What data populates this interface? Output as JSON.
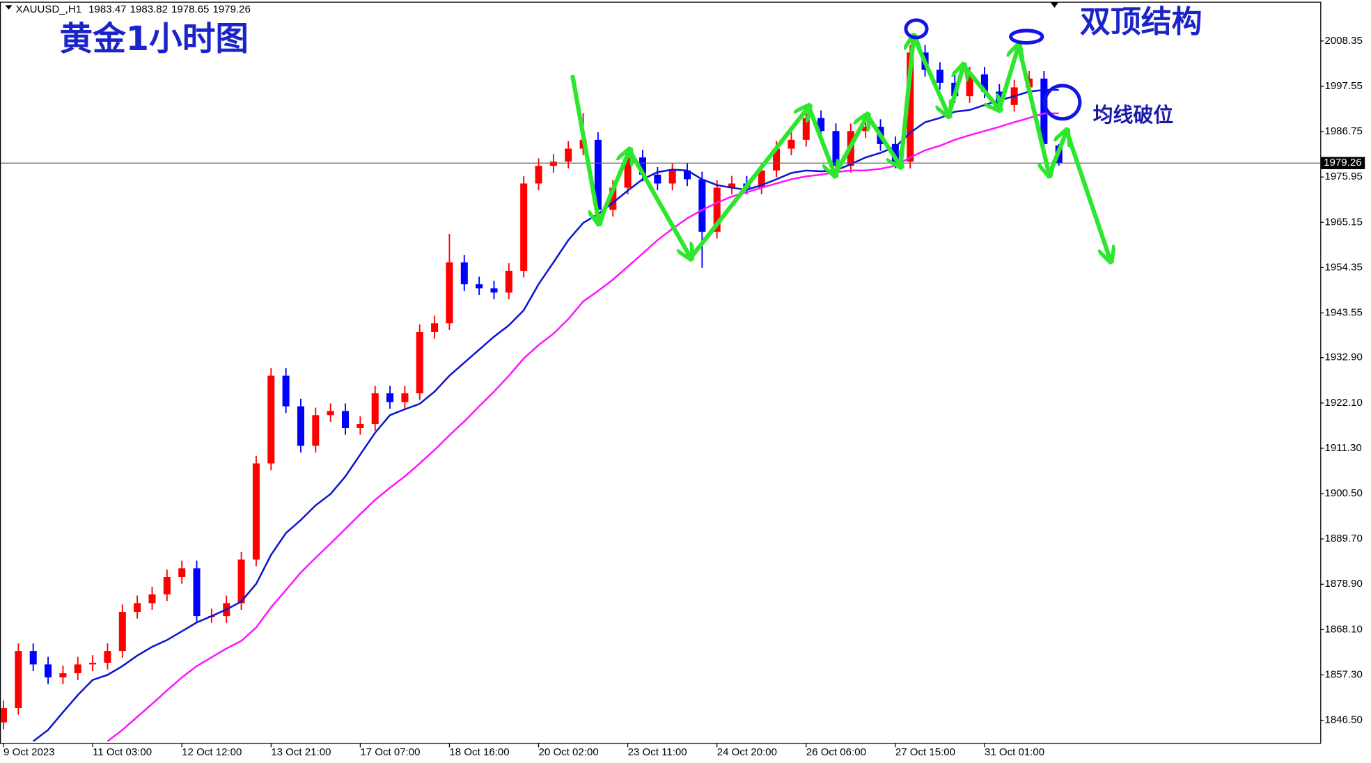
{
  "chart_data": {
    "type": "candlestick",
    "symbol": "XAUUSD_,H1",
    "title": "黄金1小时图",
    "annotations": [
      "双顶结构",
      "均线破位"
    ],
    "up_color": "#ff0000",
    "down_color": "#0000ff",
    "categories": [
      "9 Oct 2023",
      null,
      null,
      null,
      null,
      null,
      "11 Oct 03:00",
      null,
      null,
      null,
      null,
      null,
      "12 Oct 12:00",
      null,
      null,
      null,
      null,
      null,
      "13 Oct 21:00",
      null,
      null,
      null,
      null,
      null,
      "17 Oct 07:00",
      null,
      null,
      null,
      null,
      null,
      "18 Oct 16:00",
      null,
      null,
      null,
      null,
      null,
      "20 Oct 02:00",
      null,
      null,
      null,
      null,
      null,
      "23 Oct 11:00",
      null,
      null,
      null,
      null,
      null,
      "24 Oct 20:00",
      null,
      null,
      null,
      null,
      null,
      "26 Oct 06:00",
      null,
      null,
      null,
      null,
      null,
      "27 Oct 15:00",
      null,
      null,
      null,
      null,
      null,
      "31 Oct 01:00",
      null,
      null,
      null,
      null,
      null
    ],
    "open": [
      1846.0,
      1849.4,
      1863.0,
      1859.8,
      1856.7,
      1857.7,
      1859.8,
      1860.2,
      1863.0,
      1872.3,
      1874.4,
      1876.5,
      1880.6,
      1882.7,
      1871.3,
      1871.3,
      1874.4,
      1884.8,
      1907.7,
      1928.6,
      1921.3,
      1911.9,
      1919.2,
      1920.2,
      1916.1,
      1917.1,
      1924.4,
      1922.3,
      1924.4,
      1939.0,
      1941.1,
      1955.6,
      1950.4,
      1949.4,
      1948.4,
      1953.6,
      1974.4,
      1978.6,
      1979.6,
      1982.7,
      1984.8,
      1968.1,
      1973.4,
      1980.6,
      1976.5,
      1974.4,
      1977.5,
      1975.4,
      1962.9,
      1973.4,
      1974.4,
      1973.4,
      1977.5,
      1982.7,
      1984.8,
      1990.0,
      1986.9,
      1978.6,
      1986.9,
      1987.9,
      1983.8,
      1979.6,
      2005.6,
      2001.5,
      1998.4,
      1995.2,
      2000.4,
      1996.3,
      1993.1,
      1997.3,
      1999.4,
      1983.47
    ],
    "high": [
      1851.2,
      1864.8,
      1864.8,
      1861.6,
      1859.5,
      1861.6,
      1862.0,
      1864.8,
      1874.1,
      1876.2,
      1878.3,
      1882.4,
      1884.5,
      1884.5,
      1873.1,
      1876.2,
      1886.6,
      1909.5,
      1930.4,
      1930.4,
      1923.1,
      1921.0,
      1922.0,
      1922.0,
      1918.9,
      1926.2,
      1926.2,
      1926.2,
      1940.8,
      1942.9,
      1962.4,
      1957.4,
      1952.2,
      1951.2,
      1955.4,
      1976.2,
      1980.4,
      1981.4,
      1984.5,
      1991.2,
      1986.6,
      1975.2,
      1982.4,
      1982.4,
      1978.3,
      1979.3,
      1979.3,
      1977.2,
      1975.2,
      1976.2,
      1976.2,
      1979.3,
      1984.5,
      1986.6,
      1991.8,
      1991.8,
      1988.7,
      1988.7,
      1989.7,
      1989.7,
      1985.6,
      2007.4,
      2007.4,
      2003.3,
      2000.2,
      2002.2,
      2002.2,
      1998.1,
      1999.1,
      2001.2,
      2001.2,
      1983.82
    ],
    "low": [
      1844.4,
      1847.8,
      1858.2,
      1855.1,
      1855.1,
      1856.1,
      1858.2,
      1858.6,
      1861.4,
      1870.7,
      1872.8,
      1874.9,
      1879.0,
      1869.7,
      1869.7,
      1869.7,
      1872.8,
      1883.2,
      1906.1,
      1919.7,
      1910.3,
      1910.3,
      1917.6,
      1914.5,
      1914.5,
      1915.5,
      1920.7,
      1920.7,
      1922.8,
      1937.4,
      1939.5,
      1948.8,
      1947.8,
      1946.8,
      1946.8,
      1952.0,
      1972.8,
      1977.0,
      1978.0,
      1981.1,
      1966.5,
      1966.5,
      1971.8,
      1974.9,
      1972.8,
      1972.8,
      1973.8,
      1954.3,
      1961.3,
      1971.8,
      1971.8,
      1971.8,
      1975.9,
      1981.1,
      1983.2,
      1985.3,
      1977.0,
      1977.0,
      1985.3,
      1982.2,
      1978.0,
      1978.0,
      1999.9,
      1996.8,
      1993.6,
      1993.6,
      1994.7,
      1991.5,
      1991.5,
      1995.7,
      1982.2,
      1978.65
    ],
    "close": [
      1849.4,
      1863.0,
      1859.8,
      1856.7,
      1857.7,
      1859.8,
      1860.2,
      1863.0,
      1872.3,
      1874.4,
      1876.5,
      1880.6,
      1882.7,
      1871.3,
      1871.3,
      1874.4,
      1884.8,
      1907.7,
      1928.6,
      1921.3,
      1911.9,
      1919.2,
      1920.2,
      1916.1,
      1917.1,
      1924.4,
      1922.3,
      1924.4,
      1939.0,
      1941.1,
      1955.6,
      1950.4,
      1949.4,
      1948.4,
      1953.6,
      1974.4,
      1978.6,
      1979.6,
      1982.7,
      1984.8,
      1968.1,
      1973.4,
      1980.6,
      1976.5,
      1974.4,
      1977.5,
      1975.4,
      1962.9,
      1973.4,
      1974.4,
      1973.4,
      1977.5,
      1982.7,
      1984.8,
      1990.0,
      1986.9,
      1978.6,
      1986.9,
      1987.9,
      1983.8,
      1979.6,
      2005.6,
      2001.5,
      1998.4,
      1995.2,
      2000.4,
      1996.3,
      1993.1,
      1997.3,
      1999.4,
      1983.8,
      1979.26
    ],
    "series": [
      {
        "color": "#0a14d2",
        "values": [
          null,
          null,
          1841.5,
          1844.2,
          1848.4,
          1852.5,
          1856.1,
          1857.3,
          1859.4,
          1861.9,
          1864.0,
          1865.6,
          1867.7,
          1869.8,
          1871.3,
          1872.9,
          1874.8,
          1879.0,
          1885.9,
          1891.1,
          1894.2,
          1897.7,
          1900.4,
          1904.6,
          1909.8,
          1915.0,
          1919.2,
          1920.6,
          1921.9,
          1924.8,
          1928.6,
          1931.7,
          1934.8,
          1937.9,
          1940.6,
          1944.2,
          1950.4,
          1955.6,
          1960.9,
          1965.0,
          1967.1,
          1969.8,
          1972.7,
          1975.4,
          1977.1,
          1977.7,
          1977.5,
          1975.4,
          1974.0,
          1973.4,
          1972.9,
          1974.0,
          1975.4,
          1976.9,
          1977.5,
          1977.3,
          1977.5,
          1979.0,
          1980.6,
          1981.7,
          1983.1,
          1986.5,
          1989.0,
          1990.0,
          1991.5,
          1991.9,
          1993.1,
          1994.2,
          1995.2,
          1996.3,
          1996.7,
          1996.7
        ]
      },
      {
        "color": "#ff14ff",
        "values": [
          null,
          null,
          null,
          null,
          null,
          null,
          null,
          1841.5,
          1844.2,
          1847.3,
          1850.4,
          1853.6,
          1856.7,
          1859.4,
          1861.5,
          1863.6,
          1865.4,
          1868.6,
          1873.4,
          1877.5,
          1881.7,
          1885.2,
          1888.6,
          1892.1,
          1895.6,
          1899.0,
          1901.9,
          1904.6,
          1907.7,
          1910.9,
          1914.4,
          1917.7,
          1921.3,
          1924.8,
          1928.6,
          1932.7,
          1935.9,
          1938.6,
          1942.1,
          1946.3,
          1948.8,
          1951.5,
          1954.6,
          1957.7,
          1960.9,
          1963.6,
          1966.1,
          1968.1,
          1969.8,
          1971.3,
          1972.3,
          1973.4,
          1974.4,
          1975.4,
          1976.1,
          1976.5,
          1977.1,
          1977.5,
          1977.5,
          1977.9,
          1978.6,
          1980.6,
          1982.3,
          1983.4,
          1984.8,
          1985.9,
          1986.9,
          1987.9,
          1989.0,
          1990.0,
          1991.1,
          1991.1
        ]
      }
    ],
    "ylim": [
      1841.1,
      2017.7
    ],
    "yticks": [
      2008.35,
      1997.55,
      1986.75,
      1975.95,
      1965.15,
      1954.35,
      1943.55,
      {
        "value": 1932.9,
        "label": "1932.90"
      },
      {
        "value": 1922.1,
        "label": "1922.10"
      },
      {
        "value": 1911.3,
        "label": "1911.30"
      },
      {
        "value": 1900.5,
        "label": "1900.50"
      },
      {
        "value": 1889.7,
        "label": "1889.70"
      },
      {
        "value": 1878.9,
        "label": "1878.90"
      },
      {
        "value": 1868.1,
        "label": "1868.10"
      },
      {
        "value": 1857.3,
        "label": "1857.30"
      },
      {
        "value": 1846.5,
        "label": "1846.50"
      }
    ]
  }
}
